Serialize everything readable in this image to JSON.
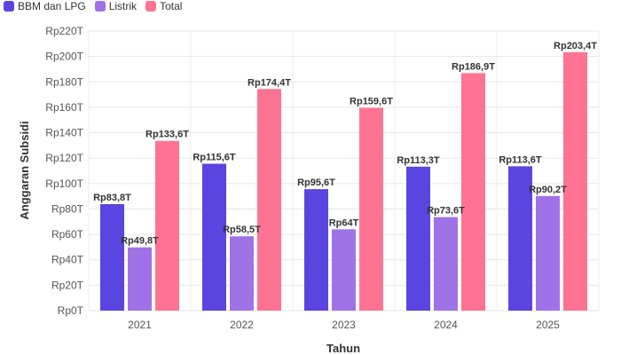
{
  "chart_data": {
    "type": "bar",
    "categories": [
      "2021",
      "2022",
      "2023",
      "2024",
      "2025"
    ],
    "series": [
      {
        "name": "BBM dan LPG",
        "color": "#5b45e0",
        "values": [
          83.8,
          115.6,
          95.6,
          113.3,
          113.6
        ],
        "labels": [
          "Rp83,8T",
          "Rp115,6T",
          "Rp95,6T",
          "Rp113,3T",
          "Rp113,6T"
        ]
      },
      {
        "name": "Listrik",
        "color": "#a072e8",
        "values": [
          49.8,
          58.5,
          64,
          73.6,
          90.2
        ],
        "labels": [
          "Rp49,8T",
          "Rp58,5T",
          "Rp64T",
          "Rp73,6T",
          "Rp90,2T"
        ]
      },
      {
        "name": "Total",
        "color": "#ff7392",
        "values": [
          133.6,
          174.4,
          159.6,
          186.9,
          203.4
        ],
        "labels": [
          "Rp133,6T",
          "Rp174,4T",
          "Rp159,6T",
          "Rp186,9T",
          "Rp203,4T"
        ]
      }
    ],
    "xlabel": "Tahun",
    "ylabel": "Anggaran Subsidi",
    "ylim": [
      0,
      220
    ],
    "yticks": [
      0,
      20,
      40,
      60,
      80,
      100,
      120,
      140,
      160,
      180,
      200,
      220
    ],
    "ytick_labels": [
      "Rp0T",
      "Rp20T",
      "Rp40T",
      "Rp60T",
      "Rp80T",
      "Rp100T",
      "Rp120T",
      "Rp140T",
      "Rp160T",
      "Rp180T",
      "Rp200T",
      "Rp220T"
    ],
    "grid": true,
    "legend_position": "top-left"
  }
}
